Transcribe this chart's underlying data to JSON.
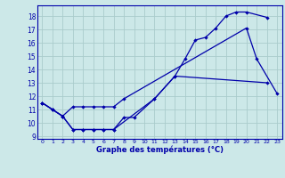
{
  "title": "Graphe des températures (°C)",
  "background_color": "#cce8e8",
  "grid_color": "#aacccc",
  "line_color": "#0000aa",
  "series1_x": [
    0,
    1,
    2,
    3,
    4,
    5,
    6,
    7,
    11,
    13,
    22
  ],
  "series1_y": [
    11.5,
    11.0,
    10.5,
    9.5,
    9.5,
    9.5,
    9.5,
    9.5,
    11.8,
    13.5,
    13.0
  ],
  "series2_x": [
    0,
    1,
    2,
    3,
    4,
    5,
    6,
    7,
    8,
    9,
    11,
    13,
    14,
    15,
    16,
    17,
    18,
    19,
    20,
    22
  ],
  "series2_y": [
    11.5,
    11.0,
    10.5,
    9.5,
    9.5,
    9.5,
    9.5,
    9.5,
    10.4,
    10.4,
    11.8,
    13.5,
    14.8,
    16.2,
    16.4,
    17.1,
    18.0,
    18.3,
    18.3,
    17.9
  ],
  "series3_x": [
    0,
    1,
    2,
    3,
    4,
    5,
    6,
    7,
    8,
    20,
    21,
    23
  ],
  "series3_y": [
    11.5,
    11.0,
    10.5,
    11.2,
    11.2,
    11.2,
    11.2,
    11.2,
    11.8,
    17.1,
    14.8,
    12.2
  ],
  "ylim": [
    8.8,
    18.8
  ],
  "yticks": [
    9,
    10,
    11,
    12,
    13,
    14,
    15,
    16,
    17,
    18
  ],
  "xlim": [
    -0.5,
    23.5
  ],
  "xticks": [
    0,
    1,
    2,
    3,
    4,
    5,
    6,
    7,
    8,
    9,
    10,
    11,
    12,
    13,
    14,
    15,
    16,
    17,
    18,
    19,
    20,
    21,
    22,
    23
  ]
}
